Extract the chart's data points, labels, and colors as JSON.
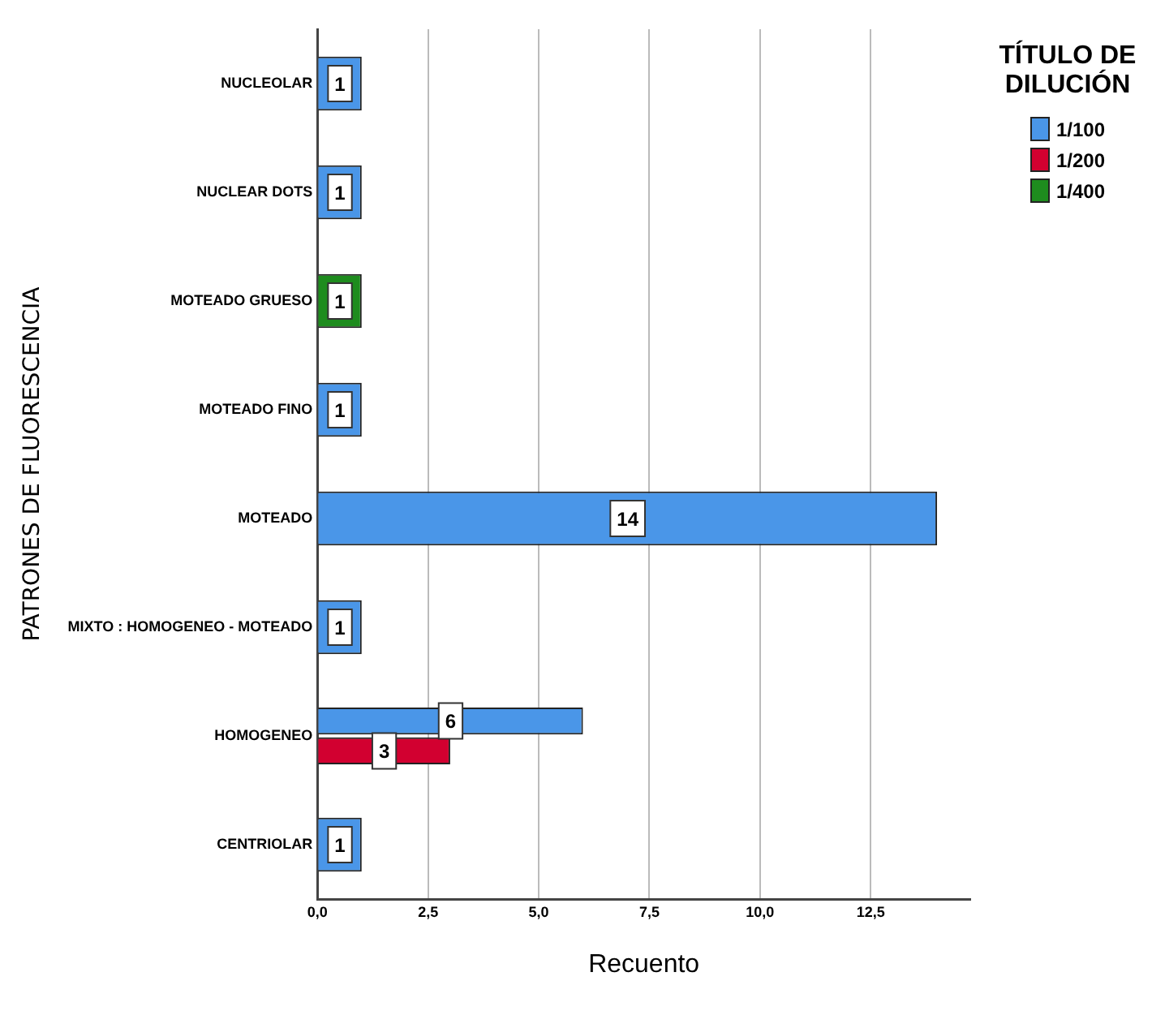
{
  "chart_data": {
    "type": "bar",
    "orientation": "horizontal",
    "categories": [
      "NUCLEOLAR",
      "NUCLEAR DOTS",
      "MOTEADO GRUESO",
      "MOTEADO FINO",
      "MOTEADO",
      "MIXTO : HOMOGENEO - MOTEADO",
      "HOMOGENEO",
      "CENTRIOLAR"
    ],
    "series": [
      {
        "name": "1/100",
        "color": "#4a96e8",
        "values": [
          1,
          1,
          null,
          1,
          14,
          1,
          6,
          1
        ]
      },
      {
        "name": "1/200",
        "color": "#d20030",
        "values": [
          null,
          null,
          null,
          null,
          null,
          null,
          3,
          null
        ]
      },
      {
        "name": "1/400",
        "color": "#1e8c1e",
        "values": [
          null,
          null,
          1,
          null,
          null,
          null,
          null,
          null
        ]
      }
    ],
    "xlim": [
      0,
      14.75
    ],
    "xticks": [
      {
        "value": 0,
        "label": "0,0"
      },
      {
        "value": 2.5,
        "label": "2,5"
      },
      {
        "value": 5,
        "label": "5,0"
      },
      {
        "value": 7.5,
        "label": "7,5"
      },
      {
        "value": 10,
        "label": "10,0"
      },
      {
        "value": 12.5,
        "label": "12,5"
      }
    ],
    "xlabel": "Recuento",
    "ylabel": "PATRONES DE FLUORESCENCIA",
    "legend_title": "TÍTULO DE DILUCIÓN",
    "legend": "top right",
    "grid": "x",
    "data_labels": true
  }
}
